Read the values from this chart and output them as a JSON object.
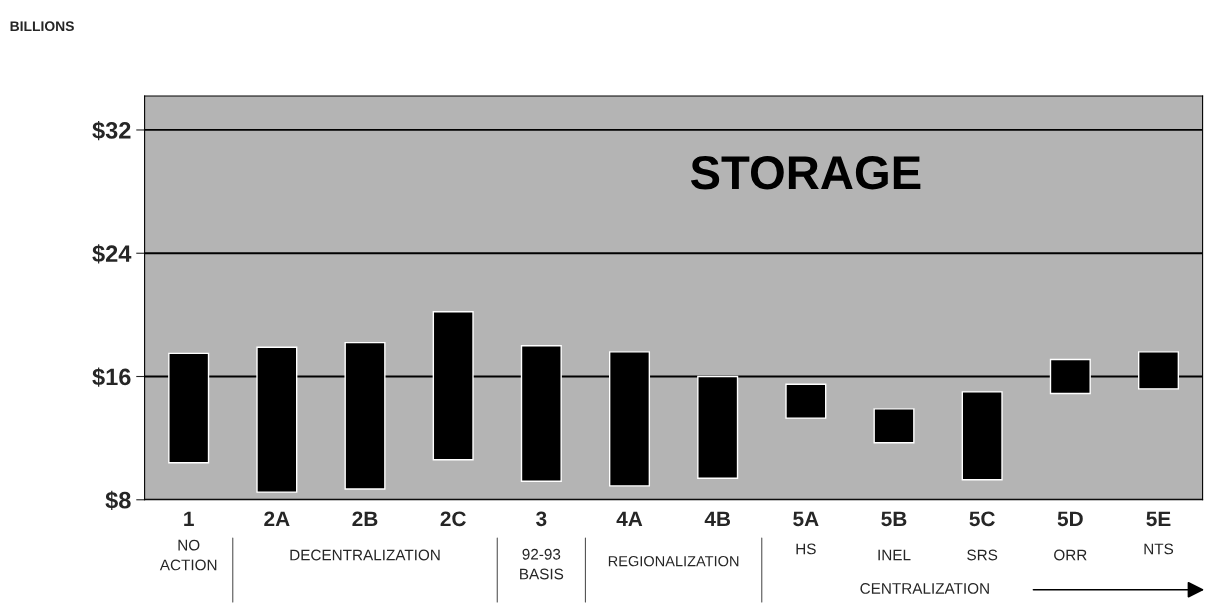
{
  "chart_data": {
    "type": "bar",
    "title": "STORAGE",
    "ylabel": "BILLIONS",
    "categories": [
      "1",
      "2A",
      "2B",
      "2C",
      "3",
      "4A",
      "4B",
      "5A",
      "5B",
      "5C",
      "5D",
      "5E"
    ],
    "base": [
      10.4,
      8.5,
      8.7,
      10.6,
      9.2,
      8.9,
      9.4,
      13.3,
      11.7,
      9.3,
      14.9,
      15.2
    ],
    "values": [
      7.1,
      9.4,
      9.5,
      9.6,
      8.8,
      8.7,
      6.6,
      2.2,
      2.2,
      5.7,
      2.2,
      2.4
    ],
    "color": "#000000",
    "ylim": [
      8,
      34.2
    ],
    "yticks": [
      {
        "value": 8,
        "label": "$8"
      },
      {
        "value": 16,
        "label": "$16"
      },
      {
        "value": 24,
        "label": "$24"
      },
      {
        "value": 32,
        "label": "$32"
      }
    ],
    "grid": "y",
    "annotations": [
      "NO\nACTION",
      "DECENTRALIZATION",
      "92-93\nBASIS",
      "REGIONALIZATION",
      "HS",
      "INEL",
      "SRS",
      "ORR",
      "NTS",
      "CENTRALIZATION"
    ]
  }
}
